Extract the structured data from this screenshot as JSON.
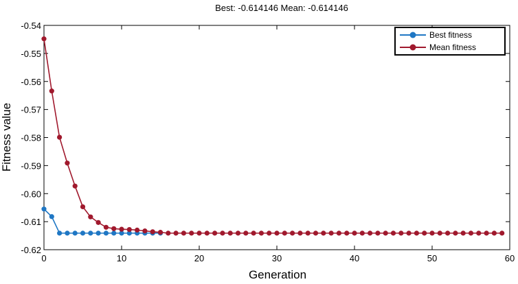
{
  "chart_data": {
    "type": "line",
    "title": "Best: -0.614146 Mean: -0.614146",
    "xlabel": "Generation",
    "ylabel": "Fitness value",
    "xlim": [
      0,
      60
    ],
    "ylim": [
      -0.62,
      -0.54
    ],
    "xticks": [
      0,
      10,
      20,
      30,
      40,
      50,
      60
    ],
    "xtick_labels": [
      "0",
      "10",
      "20",
      "30",
      "40",
      "50",
      "60"
    ],
    "yticks": [
      -0.54,
      -0.55,
      -0.56,
      -0.57,
      -0.58,
      -0.59,
      -0.6,
      -0.61,
      -0.62
    ],
    "ytick_labels": [
      "-0.54",
      "-0.55",
      "-0.56",
      "-0.57",
      "-0.58",
      "-0.59",
      "-0.60",
      "-0.61",
      "-0.62"
    ],
    "grid": false,
    "legend_position": "top-right",
    "series": [
      {
        "name": "Best fitness",
        "color": "#1f77c4",
        "x": [
          0,
          1,
          2,
          3,
          4,
          5,
          6,
          7,
          8,
          9,
          10,
          11,
          12,
          13,
          14,
          15
        ],
        "y": [
          -0.6055,
          -0.6082,
          -0.6141,
          -0.6141,
          -0.6141,
          -0.6141,
          -0.6141,
          -0.6141,
          -0.6141,
          -0.6141,
          -0.6141,
          -0.6141,
          -0.6141,
          -0.6141,
          -0.6141,
          -0.6141
        ]
      },
      {
        "name": "Mean fitness",
        "color": "#a0192d",
        "x": [
          0,
          1,
          2,
          3,
          4,
          5,
          6,
          7,
          8,
          9,
          10,
          11,
          12,
          13,
          14,
          15,
          16,
          17,
          18,
          19,
          20,
          21,
          22,
          23,
          24,
          25,
          26,
          27,
          28,
          29,
          30,
          31,
          32,
          33,
          34,
          35,
          36,
          37,
          38,
          39,
          40,
          41,
          42,
          43,
          44,
          45,
          46,
          47,
          48,
          49,
          50,
          51,
          52,
          53,
          54,
          55,
          56,
          57,
          58,
          59
        ],
        "y": [
          -0.5448,
          -0.5634,
          -0.5799,
          -0.5891,
          -0.5973,
          -0.6047,
          -0.6083,
          -0.6103,
          -0.612,
          -0.6125,
          -0.6127,
          -0.6128,
          -0.613,
          -0.6133,
          -0.6136,
          -0.6138,
          -0.6141,
          -0.6141,
          -0.6141,
          -0.6141,
          -0.6141,
          -0.6141,
          -0.6141,
          -0.6141,
          -0.6141,
          -0.6141,
          -0.6141,
          -0.6141,
          -0.6141,
          -0.6141,
          -0.6141,
          -0.6141,
          -0.6141,
          -0.6141,
          -0.6141,
          -0.6141,
          -0.6141,
          -0.6141,
          -0.6141,
          -0.6141,
          -0.6141,
          -0.6141,
          -0.6141,
          -0.6141,
          -0.6141,
          -0.6141,
          -0.6141,
          -0.6141,
          -0.6141,
          -0.6141,
          -0.6141,
          -0.6141,
          -0.6141,
          -0.6141,
          -0.6141,
          -0.6141,
          -0.6141,
          -0.6141,
          -0.6141,
          -0.6141
        ]
      }
    ]
  }
}
